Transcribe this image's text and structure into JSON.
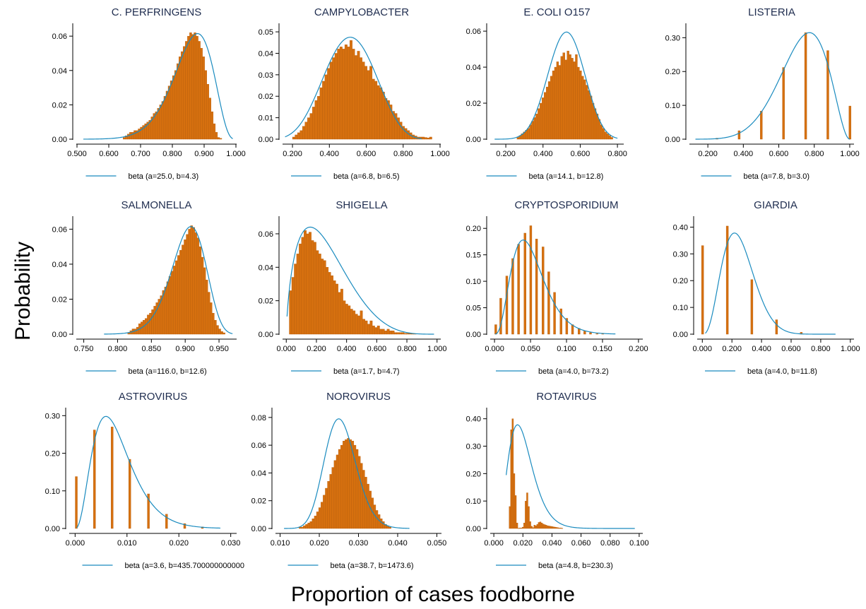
{
  "figure": {
    "ylabel": "Probability",
    "xlabel": "Proportion of cases foodborne"
  },
  "colors": {
    "bars": "#d6700f",
    "curve": "#1a8bbf",
    "title": "#1f2d4f"
  },
  "chart_data": [
    {
      "type": "bar",
      "title": "C. PERFRINGENS",
      "xlim": [
        0.5,
        1.0
      ],
      "ylim": [
        0,
        0.065
      ],
      "xticks": [
        "0.500",
        "0.600",
        "0.700",
        "0.800",
        "0.900",
        "1.000"
      ],
      "xtickvals": [
        0.5,
        0.6,
        0.7,
        0.8,
        0.9,
        1.0
      ],
      "yticks": [
        "0.00",
        "0.02",
        "0.04",
        "0.06"
      ],
      "ytickvals": [
        0,
        0.02,
        0.04,
        0.06
      ],
      "bars": {
        "x0": 0.645,
        "width": 0.00675,
        "values": [
          0.001,
          0.002,
          0.003,
          0.004,
          0.004,
          0.005,
          0.005,
          0.006,
          0.007,
          0.008,
          0.009,
          0.01,
          0.011,
          0.013,
          0.015,
          0.016,
          0.018,
          0.02,
          0.022,
          0.025,
          0.028,
          0.031,
          0.034,
          0.037,
          0.04,
          0.044,
          0.048,
          0.051,
          0.054,
          0.057,
          0.06,
          0.062,
          0.061,
          0.062,
          0.06,
          0.057,
          0.053,
          0.048,
          0.04,
          0.032,
          0.024,
          0.016,
          0.009,
          0.004,
          0.001,
          0.0005
        ]
      },
      "curve": {
        "a": 25.0,
        "b": 4.3,
        "range": [
          0.52,
          0.99
        ],
        "curve_ymax": 0.0615
      },
      "legend": "beta (a=25.0, b=4.3)"
    },
    {
      "type": "bar",
      "title": "CAMPYLOBACTER",
      "xlim": [
        0.15,
        1.0
      ],
      "ylim": [
        0,
        0.052
      ],
      "xticks": [
        "0.200",
        "0.400",
        "0.600",
        "0.800",
        "1.000"
      ],
      "xtickvals": [
        0.2,
        0.4,
        0.6,
        0.8,
        1.0
      ],
      "yticks": [
        "0.00",
        "0.01",
        "0.02",
        "0.03",
        "0.04",
        "0.05"
      ],
      "ytickvals": [
        0,
        0.01,
        0.02,
        0.03,
        0.04,
        0.05
      ],
      "bars": {
        "x0": 0.2,
        "width": 0.0135,
        "values": [
          0.001,
          0.002,
          0.003,
          0.004,
          0.006,
          0.008,
          0.01,
          0.012,
          0.015,
          0.018,
          0.02,
          0.024,
          0.027,
          0.03,
          0.033,
          0.036,
          0.038,
          0.04,
          0.042,
          0.043,
          0.042,
          0.044,
          0.043,
          0.046,
          0.042,
          0.039,
          0.041,
          0.038,
          0.036,
          0.034,
          0.032,
          0.034,
          0.028,
          0.027,
          0.025,
          0.024,
          0.022,
          0.019,
          0.018,
          0.016,
          0.013,
          0.012,
          0.01,
          0.008,
          0.006,
          0.005,
          0.004,
          0.003,
          0.002,
          0.0015,
          0.001,
          0.001,
          0.001,
          0.0008,
          0.0006,
          0.001
        ]
      },
      "curve": {
        "a": 6.8,
        "b": 6.5,
        "range": [
          0.16,
          0.9
        ],
        "curve_ymax": 0.0475
      },
      "legend": "beta (a=6.8, b=6.5)"
    },
    {
      "type": "bar",
      "title": "E. COLI O157",
      "xlim": [
        0.12,
        0.83
      ],
      "ylim": [
        0,
        0.062
      ],
      "xticks": [
        "0.200",
        "0.400",
        "0.600",
        "0.800"
      ],
      "xtickvals": [
        0.2,
        0.4,
        0.6,
        0.8
      ],
      "yticks": [
        "0.00",
        "0.02",
        "0.04",
        "0.06"
      ],
      "ytickvals": [
        0,
        0.02,
        0.04,
        0.06
      ],
      "bars": {
        "x0": 0.26,
        "width": 0.0112,
        "values": [
          0.001,
          0.002,
          0.003,
          0.004,
          0.005,
          0.006,
          0.008,
          0.01,
          0.012,
          0.014,
          0.017,
          0.02,
          0.023,
          0.026,
          0.029,
          0.032,
          0.035,
          0.038,
          0.04,
          0.043,
          0.041,
          0.046,
          0.048,
          0.044,
          0.049,
          0.047,
          0.045,
          0.043,
          0.047,
          0.04,
          0.038,
          0.035,
          0.033,
          0.03,
          0.027,
          0.024,
          0.02,
          0.017,
          0.014,
          0.011,
          0.008,
          0.006,
          0.004,
          0.003,
          0.002,
          0.001
        ]
      },
      "curve": {
        "a": 14.1,
        "b": 12.8,
        "range": [
          0.14,
          0.8
        ],
        "curve_ymax": 0.0595
      },
      "legend": "beta (a=14.1, b=12.8)"
    },
    {
      "type": "bar",
      "title": "LISTERIA",
      "xlim": [
        0.1,
        1.02
      ],
      "ylim": [
        0,
        0.33
      ],
      "xticks": [
        "0.200",
        "0.400",
        "0.600",
        "0.800",
        "1.000"
      ],
      "xtickvals": [
        0.2,
        0.4,
        0.6,
        0.8,
        1.0
      ],
      "yticks": [
        "0.00",
        "0.10",
        "0.20",
        "0.30"
      ],
      "ytickvals": [
        0,
        0.1,
        0.2,
        0.3
      ],
      "spikes": {
        "x": [
          0.25,
          0.375,
          0.5,
          0.625,
          0.75,
          0.875,
          1.0
        ],
        "values": [
          0.003,
          0.025,
          0.083,
          0.212,
          0.315,
          0.262,
          0.098
        ],
        "width": 0.009
      },
      "curve": {
        "a": 7.8,
        "b": 3.0,
        "range": [
          0.13,
          1.0
        ],
        "curve_ymax": 0.315
      },
      "legend": "beta (a=7.8, b=3.0)"
    },
    {
      "type": "bar",
      "title": "SALMONELLA",
      "xlim": [
        0.74,
        0.975
      ],
      "ylim": [
        0,
        0.065
      ],
      "xticks": [
        "0.750",
        "0.800",
        "0.850",
        "0.900",
        "0.950"
      ],
      "xtickvals": [
        0.75,
        0.8,
        0.85,
        0.9,
        0.95
      ],
      "yticks": [
        "0.00",
        "0.02",
        "0.04",
        "0.06"
      ],
      "ytickvals": [
        0,
        0.02,
        0.04,
        0.06
      ],
      "bars": {
        "x0": 0.815,
        "width": 0.0032,
        "values": [
          0.001,
          0.002,
          0.003,
          0.003,
          0.004,
          0.006,
          0.007,
          0.008,
          0.009,
          0.011,
          0.012,
          0.014,
          0.016,
          0.018,
          0.02,
          0.022,
          0.025,
          0.027,
          0.03,
          0.033,
          0.036,
          0.039,
          0.042,
          0.045,
          0.048,
          0.051,
          0.054,
          0.057,
          0.06,
          0.062,
          0.061,
          0.058,
          0.055,
          0.05,
          0.044,
          0.038,
          0.031,
          0.024,
          0.018,
          0.012,
          0.008,
          0.005,
          0.003,
          0.0015,
          0.0008
        ]
      },
      "curve": {
        "a": 116.0,
        "b": 12.6,
        "range": [
          0.78,
          0.97
        ],
        "curve_ymax": 0.0615
      },
      "legend": "beta (a=116.0, b=12.6)"
    },
    {
      "type": "bar",
      "title": "SHIGELLA",
      "xlim": [
        -0.02,
        1.02
      ],
      "ylim": [
        0,
        0.068
      ],
      "xticks": [
        "0.000",
        "0.200",
        "0.400",
        "0.600",
        "0.800",
        "1.000"
      ],
      "xtickvals": [
        0,
        0.2,
        0.4,
        0.6,
        0.8,
        1.0
      ],
      "yticks": [
        "0.00",
        "0.02",
        "0.04",
        "0.06"
      ],
      "ytickvals": [
        0,
        0.02,
        0.04,
        0.06
      ],
      "bars": {
        "x0": 0.02,
        "width": 0.0162,
        "values": [
          0.026,
          0.034,
          0.042,
          0.048,
          0.054,
          0.058,
          0.062,
          0.06,
          0.061,
          0.056,
          0.055,
          0.05,
          0.048,
          0.045,
          0.044,
          0.04,
          0.037,
          0.035,
          0.032,
          0.03,
          0.025,
          0.027,
          0.02,
          0.018,
          0.017,
          0.015,
          0.014,
          0.012,
          0.011,
          0.014,
          0.009,
          0.008,
          0.006,
          0.008,
          0.005,
          0.004,
          0.005,
          0.003,
          0.003,
          0.002,
          0.003,
          0.002,
          0.002,
          0.001,
          0.001,
          0.001,
          0.001,
          0.0005,
          0.0005,
          0.0005,
          0.0004,
          0.0003
        ]
      },
      "curve": {
        "a": 1.7,
        "b": 4.7,
        "range": [
          0.005,
          0.98
        ],
        "curve_ymax": 0.064
      },
      "legend": "beta (a=1.7, b=4.7)"
    },
    {
      "type": "bar",
      "title": "CRYPTOSPORIDIUM",
      "xlim": [
        -0.005,
        0.205
      ],
      "ylim": [
        0,
        0.215
      ],
      "xticks": [
        "0.000",
        "0.050",
        "0.100",
        "0.150",
        "0.200"
      ],
      "xtickvals": [
        0,
        0.05,
        0.1,
        0.15,
        0.2
      ],
      "yticks": [
        "0.00",
        "0.05",
        "0.10",
        "0.15",
        "0.20"
      ],
      "ytickvals": [
        0,
        0.05,
        0.1,
        0.15,
        0.2
      ],
      "spikes": {
        "x": [
          0.0014,
          0.0083,
          0.0167,
          0.025,
          0.033,
          0.042,
          0.05,
          0.058,
          0.067,
          0.075,
          0.083,
          0.092,
          0.1,
          0.108,
          0.117,
          0.125,
          0.133,
          0.142,
          0.15
        ],
        "values": [
          0.018,
          0.068,
          0.11,
          0.143,
          0.17,
          0.191,
          0.205,
          0.18,
          0.165,
          0.118,
          0.079,
          0.048,
          0.03,
          0.018,
          0.011,
          0.006,
          0.003,
          0.001,
          0.001
        ],
        "width": 0.0022
      },
      "curve": {
        "a": 4.0,
        "b": 73.2,
        "range": [
          0.001,
          0.168
        ],
        "curve_ymax": 0.178
      },
      "legend": "beta (a=4.0, b=73.2)"
    },
    {
      "type": "bar",
      "title": "GIARDIA",
      "xlim": [
        -0.03,
        1.02
      ],
      "ylim": [
        0,
        0.425
      ],
      "xticks": [
        "0.000",
        "0.200",
        "0.400",
        "0.600",
        "0.800",
        "1.000"
      ],
      "xtickvals": [
        0,
        0.2,
        0.4,
        0.6,
        0.8,
        1.0
      ],
      "yticks": [
        "0.00",
        "0.10",
        "0.20",
        "0.30",
        "0.40"
      ],
      "ytickvals": [
        0,
        0.1,
        0.2,
        0.3,
        0.4
      ],
      "spikes": {
        "x": [
          0.0,
          0.167,
          0.333,
          0.5,
          0.667
        ],
        "values": [
          0.331,
          0.404,
          0.204,
          0.054,
          0.007
        ],
        "width": 0.011
      },
      "curve": {
        "a": 4.0,
        "b": 11.8,
        "range": [
          0.02,
          0.9
        ],
        "curve_ymax": 0.378
      },
      "legend": "beta (a=4.0, b=11.8)"
    },
    {
      "type": "bar",
      "title": "ASTROVIRUS",
      "xlim": [
        -0.001,
        0.031
      ],
      "ylim": [
        0,
        0.31
      ],
      "xticks": [
        "0.000",
        "0.010",
        "0.020",
        "0.030"
      ],
      "xtickvals": [
        0,
        0.01,
        0.02,
        0.03
      ],
      "yticks": [
        "0.00",
        "0.10",
        "0.20",
        "0.30"
      ],
      "ytickvals": [
        0,
        0.1,
        0.2,
        0.3
      ],
      "spikes": {
        "x": [
          0.0002,
          0.0037,
          0.0071,
          0.0105,
          0.0141,
          0.0176,
          0.0211,
          0.0245
        ],
        "values": [
          0.138,
          0.262,
          0.27,
          0.184,
          0.092,
          0.038,
          0.013,
          0.004
        ],
        "width": 0.00035
      },
      "curve": {
        "a": 3.6,
        "b": 435.7,
        "range": [
          0.0003,
          0.028
        ],
        "curve_ymax": 0.298
      },
      "legend": "beta (a=3.6, b=435.700000000000"
    },
    {
      "type": "bar",
      "title": "NOROVIRUS",
      "xlim": [
        0.009,
        0.051
      ],
      "ylim": [
        0,
        0.084
      ],
      "xticks": [
        "0.010",
        "0.020",
        "0.030",
        "0.040",
        "0.050"
      ],
      "xtickvals": [
        0.01,
        0.02,
        0.03,
        0.04,
        0.05
      ],
      "yticks": [
        "0.00",
        "0.02",
        "0.04",
        "0.06",
        "0.08"
      ],
      "ytickvals": [
        0,
        0.02,
        0.04,
        0.06,
        0.08
      ],
      "bars": {
        "x0": 0.0148,
        "width": 0.00056,
        "values": [
          0.001,
          0.001,
          0.002,
          0.003,
          0.004,
          0.005,
          0.007,
          0.009,
          0.012,
          0.015,
          0.019,
          0.024,
          0.029,
          0.034,
          0.039,
          0.044,
          0.049,
          0.053,
          0.057,
          0.06,
          0.063,
          0.064,
          0.065,
          0.064,
          0.063,
          0.06,
          0.057,
          0.052,
          0.047,
          0.042,
          0.037,
          0.032,
          0.027,
          0.022,
          0.017,
          0.013,
          0.01,
          0.007,
          0.005,
          0.003,
          0.002,
          0.001
        ]
      },
      "curve": {
        "a": 38.7,
        "b": 1473.6,
        "range": [
          0.011,
          0.043
        ],
        "curve_ymax": 0.079
      },
      "legend": "beta (a=38.7, b=1473.6)"
    },
    {
      "type": "bar",
      "title": "ROTAVIRUS",
      "xlim": [
        -0.002,
        0.102
      ],
      "ylim": [
        0,
        0.425
      ],
      "xticks": [
        "0.000",
        "0.020",
        "0.040",
        "0.060",
        "0.080",
        "0.100"
      ],
      "xtickvals": [
        0,
        0.02,
        0.04,
        0.06,
        0.08,
        0.1
      ],
      "yticks": [
        "0.00",
        "0.10",
        "0.20",
        "0.30",
        "0.40"
      ],
      "ytickvals": [
        0,
        0.1,
        0.2,
        0.3,
        0.4
      ],
      "bars": {
        "x0": 0.0105,
        "width": 0.001,
        "values": [
          0.08,
          0.36,
          0.4,
          0.2,
          0.12,
          0.02,
          0.001,
          0.002,
          0.002,
          0.005,
          0.02,
          0.1,
          0.13,
          0.08,
          0.025,
          0.008,
          0.003,
          0.012,
          0.01,
          0.015,
          0.022,
          0.024,
          0.02,
          0.016,
          0.014,
          0.012,
          0.01,
          0.009,
          0.008,
          0.007,
          0.006,
          0.005,
          0.004,
          0.003,
          0.002,
          0.002,
          0.001
        ]
      },
      "curve": {
        "a": 4.8,
        "b": 230.3,
        "range": [
          0.0085,
          0.097
        ],
        "curve_ymax": 0.378
      },
      "legend": "beta (a=4.8, b=230.3)"
    }
  ]
}
